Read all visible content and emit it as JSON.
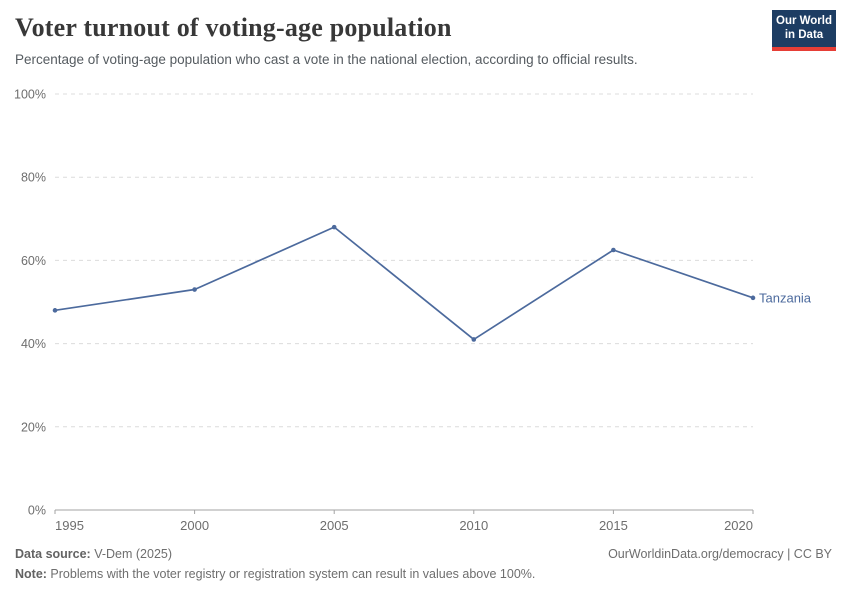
{
  "header": {
    "title": "Voter turnout of voting-age population",
    "subtitle": "Percentage of voting-age population who cast a vote in the national election, according to official results.",
    "logo": {
      "line1": "Our World",
      "line2": "in Data",
      "bg_color": "#1d3d63",
      "stripe_color": "#e63e36"
    }
  },
  "chart_data": {
    "type": "line",
    "title": "Voter turnout of voting-age population",
    "x": [
      1995,
      2000,
      2005,
      2010,
      2015,
      2020
    ],
    "series": [
      {
        "name": "Tanzania",
        "values": [
          48,
          53,
          68,
          41,
          62.5,
          51
        ],
        "color": "#4c6a9d"
      }
    ],
    "xlabel": "",
    "ylabel": "",
    "xlim": [
      1995,
      2020
    ],
    "ylim": [
      0,
      100
    ],
    "yticks": [
      0,
      20,
      40,
      60,
      80,
      100
    ],
    "ytick_suffix": "%",
    "grid": "horizontal-dashed",
    "grid_color": "#dcdcdc",
    "axis_color": "#a3a3a3",
    "legend_position": "end-of-line-label"
  },
  "footer": {
    "source_label": "Data source:",
    "source_value": " V-Dem (2025)",
    "rights": "OurWorldinData.org/democracy | CC BY",
    "note_label": "Note:",
    "note_value": " Problems with the voter registry or registration system can result in values above 100%."
  }
}
